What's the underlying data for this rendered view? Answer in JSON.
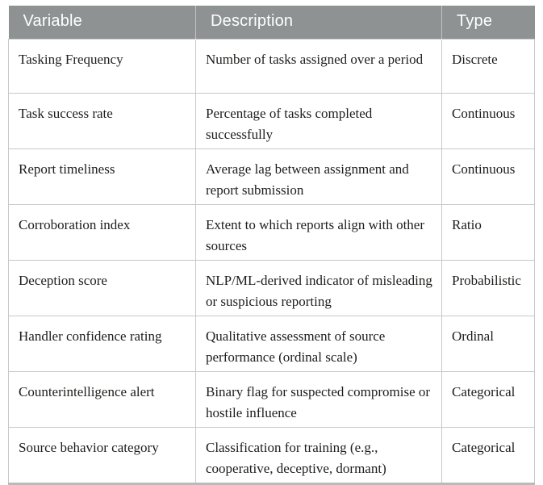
{
  "colors": {
    "header_bg": "#8e9293",
    "header_text": "#ffffff",
    "body_text": "#1d1d1b",
    "grid_border": "#c6c8c9",
    "bottom_border": "#b6bcba",
    "page_bg": "#ffffff"
  },
  "table": {
    "headers": [
      "Variable",
      "Description",
      "Type"
    ],
    "rows": [
      {
        "variable": "Tasking Frequency",
        "description": "Number of tasks assigned over a period",
        "type": "Discrete"
      },
      {
        "variable": "Task success rate",
        "description": "Percentage of tasks completed successfully",
        "type": "Continuous"
      },
      {
        "variable": "Report timeliness",
        "description": "Average lag between assignment and report submission",
        "type": "Continuous"
      },
      {
        "variable": "Corroboration index",
        "description": "Extent to which reports align with other sources",
        "type": "Ratio"
      },
      {
        "variable": "Deception score",
        "description": "NLP/ML-derived indicator of misleading or suspicious reporting",
        "type": "Probabilistic"
      },
      {
        "variable": "Handler confidence rating",
        "description": "Qualitative assessment of source performance (ordinal scale)",
        "type": "Ordinal"
      },
      {
        "variable": "Counterintelligence alert",
        "description": "Binary flag for suspected compromise or hostile influence",
        "type": "Categorical"
      },
      {
        "variable": "Source behavior category",
        "description": "Classification for training (e.g., cooperative, deceptive, dormant)",
        "type": "Categorical"
      }
    ]
  }
}
